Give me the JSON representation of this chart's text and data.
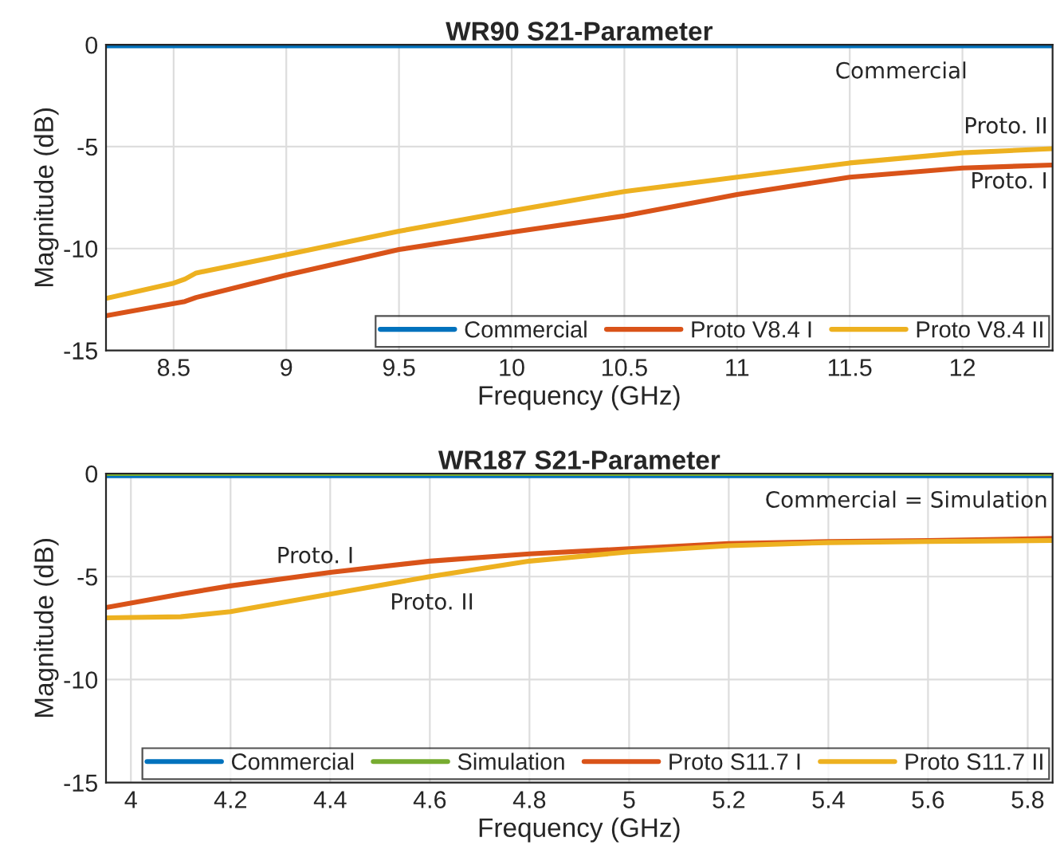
{
  "chart_data": [
    {
      "type": "line",
      "title": "WR90 S21-Parameter",
      "xlabel": "Frequency (GHz)",
      "ylabel": "Magnitude (dB)",
      "xlim": [
        8.2,
        12.4
      ],
      "xticks": [
        8.5,
        9,
        9.5,
        10,
        10.5,
        11,
        11.5,
        12
      ],
      "ylim": [
        -15,
        0
      ],
      "yticks": [
        -15,
        -10,
        -5,
        0
      ],
      "grid": true,
      "legend": "bottom",
      "line_style": "solid",
      "x": [
        8.2,
        8.5,
        8.55,
        8.6,
        9,
        9.5,
        10,
        10.5,
        11,
        11.5,
        12,
        12.4
      ],
      "series": [
        {
          "name": "Commercial",
          "color": "#0072bd",
          "values": [
            -0.05,
            -0.05,
            -0.05,
            -0.05,
            -0.05,
            -0.05,
            -0.05,
            -0.05,
            -0.05,
            -0.05,
            -0.05,
            -0.05
          ]
        },
        {
          "name": "Proto V8.4 I",
          "color": "#d95319",
          "values": [
            -13.3,
            -12.7,
            -12.6,
            -12.4,
            -11.3,
            -10.05,
            -9.2,
            -8.4,
            -7.35,
            -6.5,
            -6.05,
            -5.9
          ]
        },
        {
          "name": "Proto V8.4 II",
          "color": "#edb120",
          "values": [
            -12.45,
            -11.7,
            -11.5,
            -11.2,
            -10.3,
            -9.15,
            -8.15,
            -7.2,
            -6.5,
            -5.8,
            -5.3,
            -5.1
          ]
        }
      ],
      "annotations": [
        "Commercial",
        "Proto. II",
        "Proto. I"
      ]
    },
    {
      "type": "line",
      "title": "WR187 S21-Parameter",
      "xlabel": "Frequency (GHz)",
      "ylabel": "Magnitude (dB)",
      "xlim": [
        3.95,
        5.85
      ],
      "xticks": [
        4,
        4.2,
        4.4,
        4.6,
        4.8,
        5,
        5.2,
        5.4,
        5.6,
        5.8
      ],
      "ylim": [
        -15,
        0
      ],
      "yticks": [
        -15,
        -10,
        -5,
        0
      ],
      "grid": true,
      "legend": "bottom",
      "line_style": "solid",
      "x": [
        3.95,
        4.1,
        4.2,
        4.4,
        4.6,
        4.8,
        5.0,
        5.2,
        5.4,
        5.6,
        5.85
      ],
      "series": [
        {
          "name": "Commercial",
          "color": "#0072bd",
          "values": [
            -0.1,
            -0.1,
            -0.1,
            -0.1,
            -0.1,
            -0.1,
            -0.1,
            -0.1,
            -0.1,
            -0.1,
            -0.1
          ]
        },
        {
          "name": "Simulation",
          "color": "#77ac30",
          "values": [
            0,
            0,
            0,
            0,
            0,
            0,
            0,
            0,
            0,
            0,
            0
          ]
        },
        {
          "name": "Proto S11.7 I",
          "color": "#d95319",
          "values": [
            -6.5,
            -5.85,
            -5.45,
            -4.8,
            -4.25,
            -3.9,
            -3.65,
            -3.4,
            -3.3,
            -3.25,
            -3.15
          ]
        },
        {
          "name": "Proto S11.7 II",
          "color": "#edb120",
          "values": [
            -7.0,
            -6.95,
            -6.7,
            -5.85,
            -5.0,
            -4.25,
            -3.8,
            -3.5,
            -3.35,
            -3.3,
            -3.25
          ]
        }
      ],
      "annotations": [
        "Commercial = Simulation",
        "Proto. I",
        "Proto. II"
      ]
    }
  ]
}
